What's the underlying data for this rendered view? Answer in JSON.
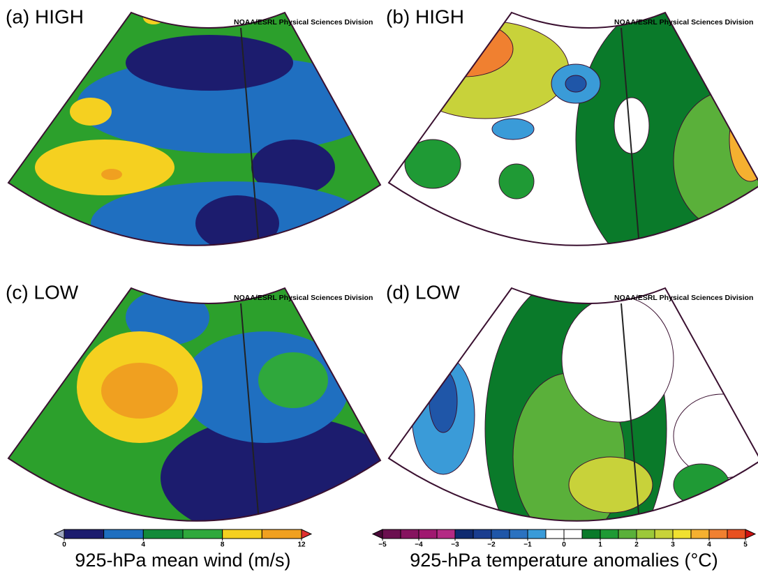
{
  "panels": [
    {
      "label": "(a) HIGH",
      "credit": "NOAA/ESRL Physical Sciences Division"
    },
    {
      "label": "(b) HIGH",
      "credit": "NOAA/ESRL Physical Sciences Division"
    },
    {
      "label": "(c) LOW",
      "credit": "NOAA/ESRL Physical Sciences Division"
    },
    {
      "label": "(d) LOW",
      "credit": "NOAA/ESRL Physical Sciences Division"
    }
  ],
  "colorbars": [
    {
      "title": "925-hPa mean wind (m/s)",
      "lim": [
        0,
        12
      ],
      "ticks": [
        0,
        4,
        8,
        12
      ],
      "colors": [
        "#1c1c6e",
        "#1f6fc0",
        "#138a3a",
        "#2fa83c",
        "#f5d020",
        "#f0a020"
      ],
      "under_color": "#a0a8c0",
      "over_color": "#e03030"
    },
    {
      "title": "925-hPa temperature anomalies (°C)",
      "lim": [
        -5,
        5
      ],
      "ticks": [
        {
          "value": -5,
          "label": "−5"
        },
        {
          "value": -4,
          "label": "−4"
        },
        {
          "value": -3,
          "label": "−3"
        },
        {
          "value": -2,
          "label": "−2"
        },
        {
          "value": -1,
          "label": "−1"
        },
        0,
        1,
        2,
        3,
        4,
        5
      ],
      "colors": [
        "#6b0f4f",
        "#86135f",
        "#a01870",
        "#b42a84",
        "#0f2a70",
        "#1a3d8f",
        "#1f56a8",
        "#2b72c0",
        "#3a9bd8",
        "#ffffff",
        "#ffffff",
        "#0a7a2a",
        "#1f9a35",
        "#5ab03a",
        "#9cc83a",
        "#c8d23a",
        "#f0e030",
        "#f5b030",
        "#f08030",
        "#e85020"
      ],
      "under_color": "#4a0838",
      "over_color": "#d01010"
    }
  ]
}
